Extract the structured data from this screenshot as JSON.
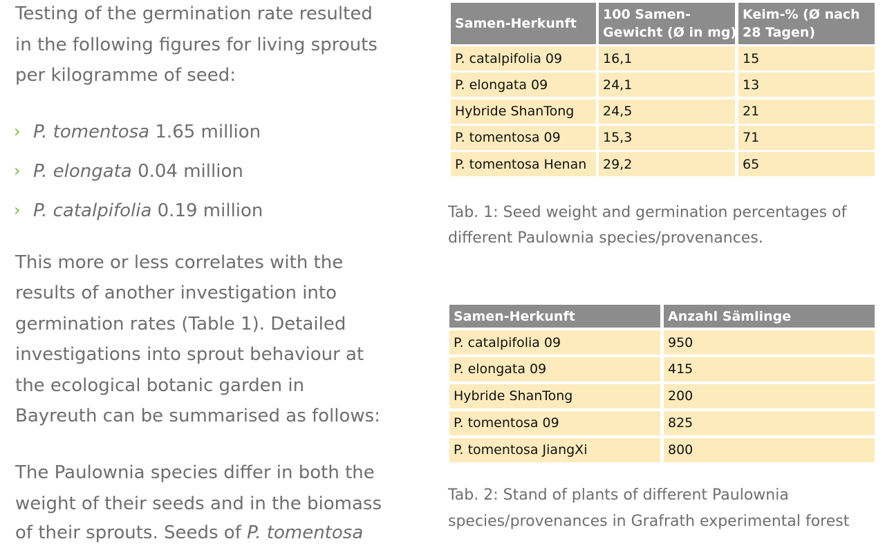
{
  "left": {
    "para1": [
      "Testing of the germination rate resulted",
      "in the following figures for living sprouts",
      "per kilogramme of seed:"
    ],
    "bullets": [
      {
        "italic": "P. tomentosa",
        "text": "1.65 million"
      },
      {
        "italic": "P. elongata",
        "text": "0.04 million"
      },
      {
        "italic": "P. catalpifolia",
        "text": "0.19 million"
      }
    ],
    "para2": [
      "This more or less correlates with the",
      "results of another investigation into",
      "germination rates (Table 1). Detailed",
      "investigations into sprout behaviour at",
      "the ecological botanic garden in",
      "Bayreuth can be summarised as follows:"
    ],
    "para3": {
      "lines": [
        "The Paulownia species differ in both the",
        "weight of their seeds and in the biomass"
      ],
      "last": {
        "text": "of their sprouts. Seeds of",
        "italic": "P. tomentosa"
      }
    }
  },
  "table1": {
    "header": [
      [
        "Samen-Herkunft"
      ],
      [
        "100 Samen-",
        "Gewicht (Ø in mg)"
      ],
      [
        "Keim-% (Ø nach",
        "28 Tagen)"
      ]
    ],
    "rows": [
      [
        "P. catalpifolia 09",
        "16,1",
        "15"
      ],
      [
        "P. elongata 09",
        "24,1",
        "13"
      ],
      [
        "Hybride ShanTong",
        "24,5",
        "21"
      ],
      [
        "P. tomentosa 09",
        "15,3",
        "71"
      ],
      [
        "P. tomentosa Henan",
        "29,2",
        "65"
      ]
    ],
    "caption": [
      "Tab. 1: Seed weight and germination percentages of",
      "different Paulownia species/provenances."
    ]
  },
  "table2": {
    "header": [
      "Samen-Herkunft",
      "Anzahl Sämlinge"
    ],
    "rows": [
      [
        "P. catalpifolia 09",
        "950"
      ],
      [
        "P. elongata 09",
        "415"
      ],
      [
        "Hybride ShanTong",
        "200"
      ],
      [
        "P. tomentosa 09",
        "825"
      ],
      [
        "P. tomentosa JiangXi",
        "800"
      ]
    ],
    "caption": [
      "Tab. 2: Stand of plants of different Paulownia",
      "species/provenances in Grafrath experimental forest"
    ]
  }
}
